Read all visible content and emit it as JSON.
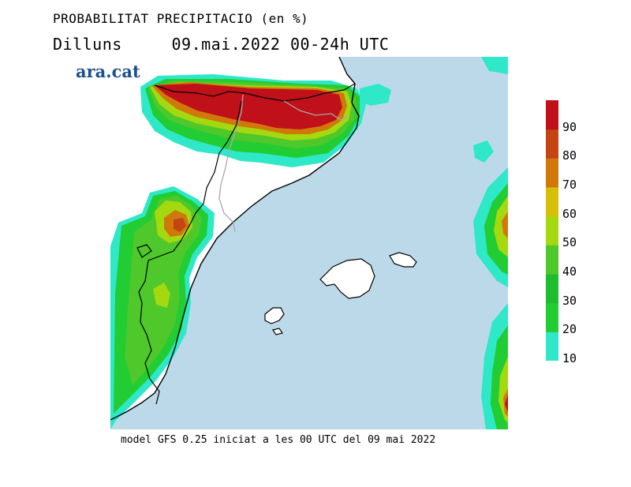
{
  "header": {
    "title": "PROBABILITAT PRECIPITACIO (en %)",
    "day": "Dilluns",
    "period": "09.mai.2022 00-24h UTC"
  },
  "logo": {
    "text": "ara.cat"
  },
  "footer": {
    "text": "model GFS 0.25 iniciat a les 00 UTC del 09 mai 2022"
  },
  "colors": {
    "sea": "#bcd9ea",
    "land": "#ffffff",
    "border": "#000000",
    "internal_border": "#a9a9a9"
  },
  "legend": {
    "bins": [
      {
        "label": "10",
        "color": "#2ee8c8"
      },
      {
        "label": "20",
        "color": "#22cc33"
      },
      {
        "label": "30",
        "color": "#1fbd2e"
      },
      {
        "label": "40",
        "color": "#4fc82b"
      },
      {
        "label": "50",
        "color": "#a4d80f"
      },
      {
        "label": "60",
        "color": "#d7bf07"
      },
      {
        "label": "70",
        "color": "#d0780a"
      },
      {
        "label": "80",
        "color": "#c34512"
      },
      {
        "label": "90",
        "color": "#c0101a"
      }
    ]
  },
  "map_regions": [
    {
      "name": "pyrenees-band",
      "max_probability": 95
    },
    {
      "name": "iberian-system-band",
      "max_probability": 80
    },
    {
      "name": "eastern-sea-cell",
      "max_probability": 70
    },
    {
      "name": "southeast-sea-cell",
      "max_probability": 85
    }
  ]
}
